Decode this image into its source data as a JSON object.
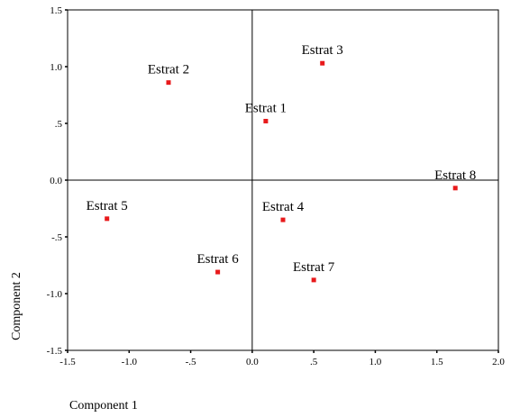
{
  "chart_data": {
    "type": "scatter",
    "title": "",
    "xlabel": "Component 1",
    "ylabel": "Component 2",
    "xlim": [
      -1.5,
      2.0
    ],
    "ylim": [
      -1.5,
      1.5
    ],
    "x_ticks": [
      -1.5,
      -1.0,
      -0.5,
      0.0,
      0.5,
      1.0,
      1.5,
      2.0
    ],
    "x_tick_labels": [
      "-1.5",
      "-1.0",
      "-.5",
      "0.0",
      ".5",
      "1.0",
      "1.5",
      "2.0"
    ],
    "y_ticks": [
      1.5,
      1.0,
      0.5,
      0.0,
      -0.5,
      -1.0,
      -1.5
    ],
    "y_tick_labels": [
      "1.5",
      "1.0",
      ".5",
      "0.0",
      "-.5",
      "-1.0",
      "-1.5"
    ],
    "grid": false,
    "reference_lines": {
      "x": 0.0,
      "y": 0.0
    },
    "marker_color": "#e8191b",
    "points": [
      {
        "label": "Estrat 1",
        "x": 0.11,
        "y": 0.52
      },
      {
        "label": "Estrat 2",
        "x": -0.68,
        "y": 0.86
      },
      {
        "label": "Estrat 3",
        "x": 0.57,
        "y": 1.03
      },
      {
        "label": "Estrat 4",
        "x": 0.25,
        "y": -0.35
      },
      {
        "label": "Estrat 5",
        "x": -1.18,
        "y": -0.34
      },
      {
        "label": "Estrat 6",
        "x": -0.28,
        "y": -0.81
      },
      {
        "label": "Estrat 7",
        "x": 0.5,
        "y": -0.88
      },
      {
        "label": "Estrat 8",
        "x": 1.65,
        "y": -0.07
      }
    ]
  }
}
